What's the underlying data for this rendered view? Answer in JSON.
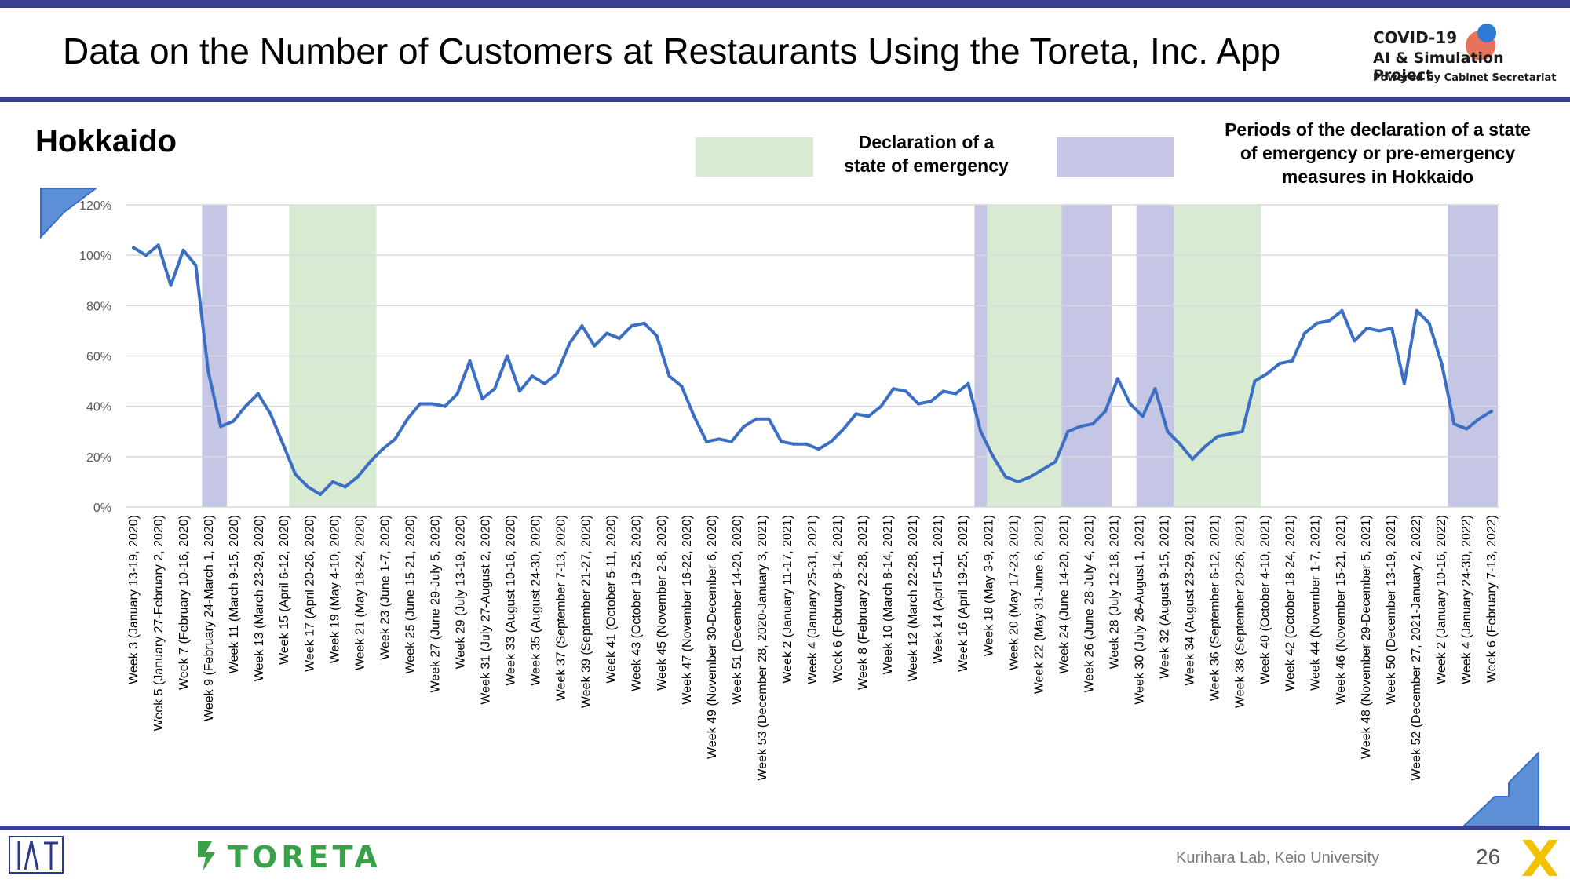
{
  "slide": {
    "title": "Data on the Number of Customers at Restaurants Using the Toreta, Inc. App",
    "region": "Hokkaido",
    "page_number": "26",
    "lab": "Kurihara Lab, Keio University",
    "toreta_logo": "TORETA"
  },
  "project_logo": {
    "line1": "COVID-19",
    "line2": "AI & Simulation Project",
    "line3": "Powered by Cabinet Secretariat",
    "dot_colors": [
      "#e8735a",
      "#2e7bd6"
    ]
  },
  "legend": {
    "emergency": {
      "label_line1": "Declaration of a",
      "label_line2": "state of emergency",
      "color": "#d9ead3"
    },
    "hokkaido": {
      "label_line1": "Periods of the declaration of a state",
      "label_line2": "of emergency or pre-emergency",
      "label_line3": "measures in Hokkaido",
      "color": "#c5c5e6"
    }
  },
  "colors": {
    "line": "#3b6fc4",
    "grid": "#d9d9d9",
    "accent": "#3b3f8f"
  },
  "icons": [
    "corner-arrow-icon",
    "toreta-logo-icon",
    "x-logo-icon",
    "kurihara-logo-icon"
  ],
  "chart_data": {
    "type": "line",
    "title": "",
    "xlabel": "",
    "ylabel": "",
    "ylim": [
      0,
      120
    ],
    "yticks": [
      "0%",
      "20%",
      "40%",
      "60%",
      "80%",
      "100%",
      "120%"
    ],
    "grid": true,
    "x_tick_labels": [
      "Week 3 (January 13-19, 2020)",
      "Week 5 (January 27-February 2, 2020)",
      "Week 7 (February 10-16, 2020)",
      "Week 9 (February 24-March 1, 2020)",
      "Week 11 (March 9-15, 2020)",
      "Week 13 (March 23-29, 2020)",
      "Week 15 (April 6-12, 2020)",
      "Week 17 (April 20-26, 2020)",
      "Week 19 (May 4-10, 2020)",
      "Week 21 (May 18-24, 2020)",
      "Week 23 (June 1-7, 2020)",
      "Week 25 (June 15-21, 2020)",
      "Week 27 (June 29-July 5, 2020)",
      "Week 29 (July 13-19, 2020)",
      "Week 31 (July 27-August 2, 2020)",
      "Week 33 (August 10-16, 2020)",
      "Week 35 (August 24-30, 2020)",
      "Week 37 (September 7-13, 2020)",
      "Week 39 (September 21-27, 2020)",
      "Week 41 (October 5-11, 2020)",
      "Week 43 (October 19-25, 2020)",
      "Week 45 (November 2-8, 2020)",
      "Week 47 (November 16-22, 2020)",
      "Week 49 (November 30-December 6, 2020)",
      "Week 51 (December 14-20, 2020)",
      "Week 53 (December 28, 2020-January 3, 2021)",
      "Week 2 (January 11-17, 2021)",
      "Week 4 (January 25-31, 2021)",
      "Week 6 (February 8-14, 2021)",
      "Week 8 (February 22-28, 2021)",
      "Week 10 (March 8-14, 2021)",
      "Week 12 (March 22-28, 2021)",
      "Week 14 (April 5-11, 2021)",
      "Week 16 (April 19-25, 2021)",
      "Week 18 (May 3-9, 2021)",
      "Week 20 (May 17-23, 2021)",
      "Week 22 (May 31-June 6, 2021)",
      "Week 24 (June 14-20, 2021)",
      "Week 26 (June 28-July 4, 2021)",
      "Week 28 (July 12-18, 2021)",
      "Week 30 (July 26-August 1, 2021)",
      "Week 32 (August 9-15, 2021)",
      "Week 34 (August 23-29, 2021)",
      "Week 36 (September 6-12, 2021)",
      "Week 38 (September 20-26, 2021)",
      "Week 40 (October 4-10, 2021)",
      "Week 42 (October 18-24, 2021)",
      "Week 44 (November 1-7, 2021)",
      "Week 46 (November 15-21, 2021)",
      "Week 48 (November 29-December 5, 2021)",
      "Week 50 (December 13-19, 2021)",
      "Week 52 (December 27, 2021-January 2, 2022)",
      "Week 2 (January 10-16, 2022)",
      "Week 4 (January 24-30, 2022)",
      "Week 6 (February 7-13, 2022)"
    ],
    "series": [
      {
        "values": [
          103,
          100,
          104,
          88,
          102,
          96,
          54,
          32,
          34,
          40,
          45,
          37,
          25,
          13,
          8,
          5,
          10,
          8,
          12,
          18,
          23,
          27,
          35,
          41,
          41,
          40,
          45,
          58,
          43,
          47,
          60,
          46,
          52,
          49,
          53,
          65,
          72,
          64,
          69,
          67,
          72,
          73,
          68,
          52,
          48,
          36,
          26,
          27,
          26,
          32,
          35,
          35,
          26,
          25,
          25,
          23,
          26,
          31,
          37,
          36,
          40,
          47,
          46,
          41,
          42,
          46,
          45,
          49,
          30,
          20,
          12,
          10,
          12,
          15,
          18,
          30,
          32,
          33,
          38,
          51,
          41,
          36,
          47,
          30,
          25,
          19,
          24,
          28,
          29,
          30,
          50,
          53,
          57,
          58,
          69,
          73,
          74,
          78,
          66,
          71,
          70,
          71,
          49,
          78,
          73,
          57,
          33,
          31,
          35,
          38
        ]
      }
    ],
    "shaded_periods": [
      {
        "kind": "hokkaido",
        "start_index": 6,
        "end_index": 7
      },
      {
        "kind": "emergency",
        "start_index": 13,
        "end_index": 19
      },
      {
        "kind": "hokkaido",
        "start_index": 68,
        "end_index": 69
      },
      {
        "kind": "emergency",
        "start_index": 69,
        "end_index": 75
      },
      {
        "kind": "hokkaido",
        "start_index": 75,
        "end_index": 78
      },
      {
        "kind": "hokkaido",
        "start_index": 81,
        "end_index": 84
      },
      {
        "kind": "emergency",
        "start_index": 84,
        "end_index": 90
      },
      {
        "kind": "hokkaido",
        "start_index": 106,
        "end_index": 109
      }
    ]
  }
}
